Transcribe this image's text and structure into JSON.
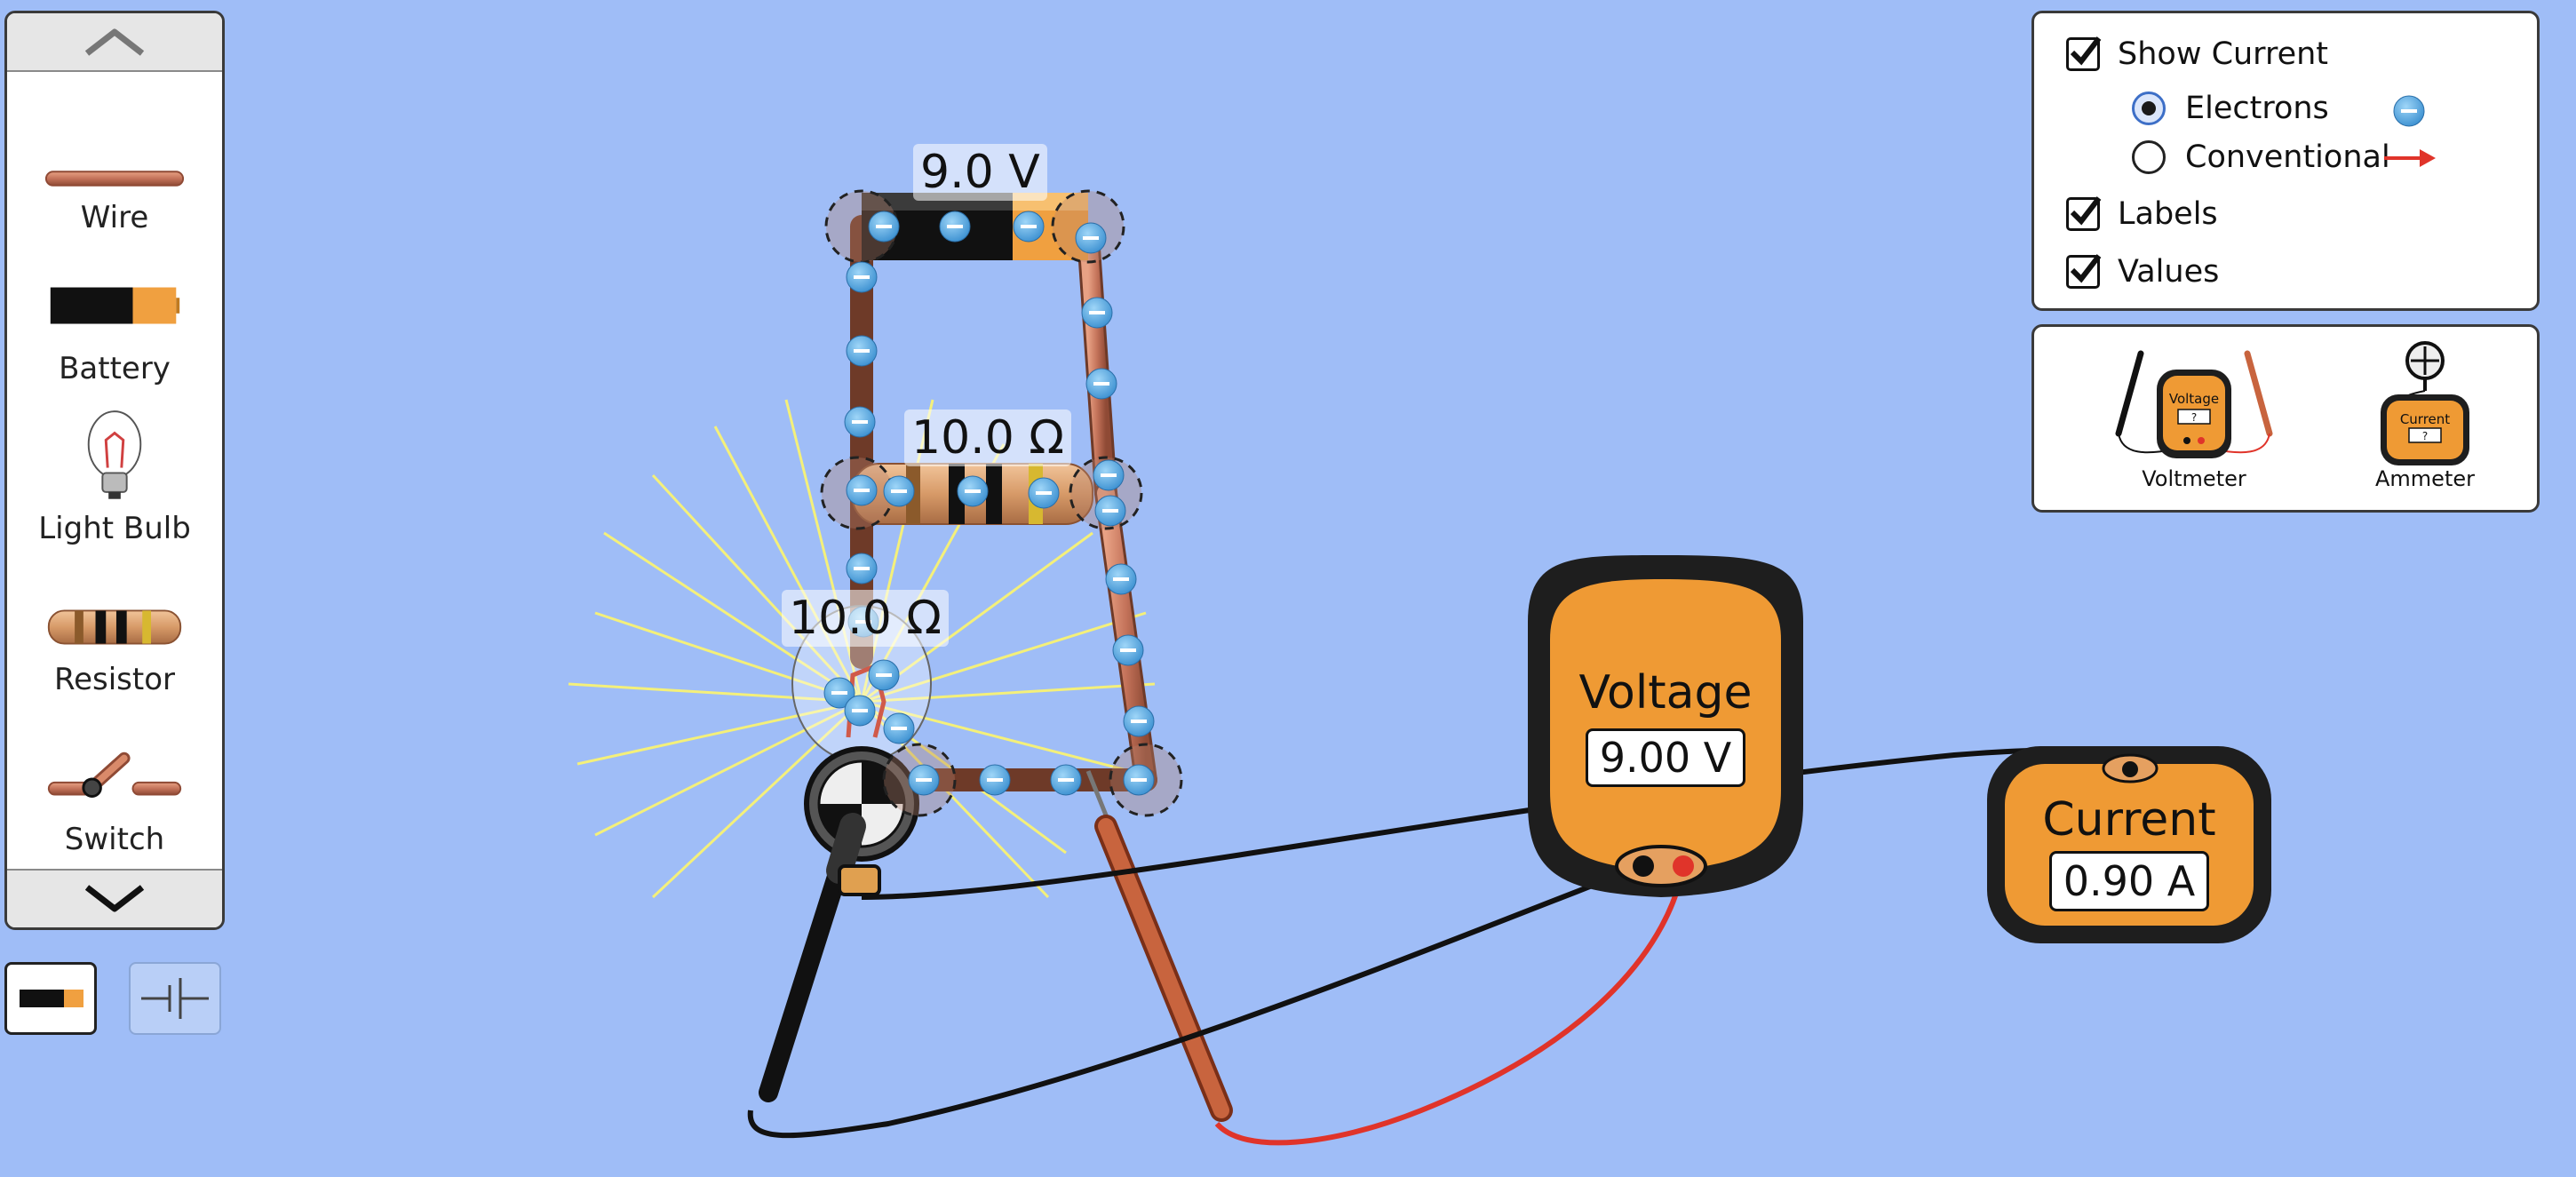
{
  "toolbox": {
    "items": [
      {
        "label": "Wire"
      },
      {
        "label": "Battery"
      },
      {
        "label": "Light Bulb"
      },
      {
        "label": "Resistor"
      },
      {
        "label": "Switch"
      }
    ]
  },
  "options": {
    "show_current": "Show Current",
    "electrons": "Electrons",
    "conventional": "Conventional",
    "labels": "Labels",
    "values": "Values"
  },
  "meters_panel": {
    "voltmeter": "Voltmeter",
    "ammeter": "Ammeter",
    "voltmeter_icon_title": "Voltage",
    "ammeter_icon_title": "Current",
    "icon_readout": "?"
  },
  "circuit": {
    "battery_label": "9.0 V",
    "resistor_label": "10.0 Ω",
    "bulb_label": "10.0 Ω"
  },
  "voltmeter": {
    "title": "Voltage",
    "reading": "9.00 V"
  },
  "ammeter": {
    "title": "Current",
    "reading": "0.90 A"
  },
  "colors": {
    "background": "#9fbdf7",
    "meter_orange": "#ef9a34",
    "wire_copper": "#c8795a",
    "electron_blue": "#4aa3e0",
    "red_probe": "#e0342a"
  }
}
